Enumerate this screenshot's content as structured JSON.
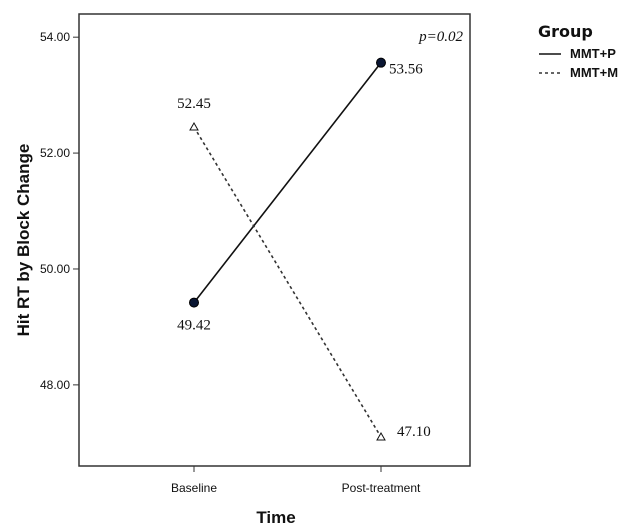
{
  "chart_data": {
    "type": "line",
    "ylabel": "Hit RT by Block Change",
    "xlabel": "Time",
    "categories": [
      "Baseline",
      "Post-treatment"
    ],
    "y_ticks": [
      "48.00",
      "50.00",
      "52.00",
      "54.00"
    ],
    "ylim": [
      46.6,
      54.4
    ],
    "grid": false,
    "annotation": "p=0.02",
    "legend": {
      "title": "Group",
      "position": "top-right outside plot"
    },
    "series": [
      {
        "name": "MMT+P",
        "values": [
          49.42,
          53.56
        ],
        "labels": [
          "49.42",
          "53.56"
        ],
        "line_style": "solid",
        "marker": "filled-circle",
        "color": "#111111",
        "marker_fill": "#0a1633"
      },
      {
        "name": "MMT+M",
        "values": [
          52.45,
          47.1
        ],
        "labels": [
          "52.45",
          "47.10"
        ],
        "line_style": "dashed",
        "marker": "open-triangle",
        "color": "#333333"
      }
    ]
  }
}
